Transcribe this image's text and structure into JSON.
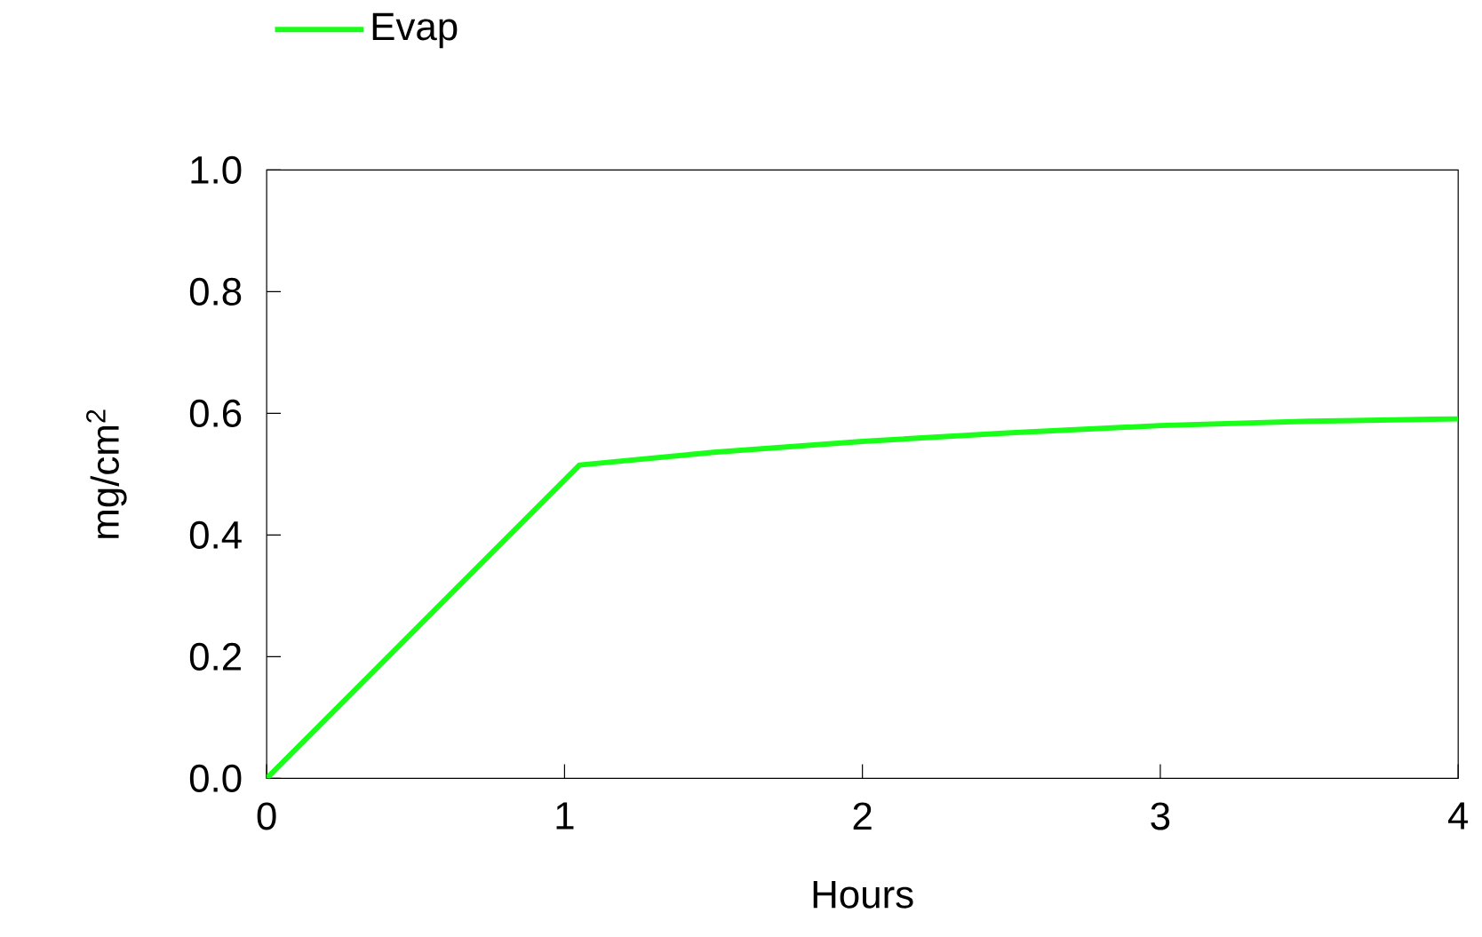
{
  "chart_data": {
    "type": "line",
    "xlabel": "Hours",
    "ylabel": "mg/cm$^{2}$",
    "x": [
      0,
      1.05,
      1.5,
      2,
      2.5,
      3,
      3.5,
      4
    ],
    "series": [
      {
        "name": "Evap",
        "color": "#19ff19",
        "values": [
          0,
          0.515,
          0.536,
          0.554,
          0.568,
          0.58,
          0.587,
          0.591
        ]
      }
    ],
    "xlim": [
      0,
      4
    ],
    "ylim": [
      0,
      1.0
    ],
    "xticks": [
      0,
      1,
      2,
      3,
      4
    ],
    "yticks": [
      {
        "value": 0,
        "label": "0.0"
      },
      0.2,
      0.4,
      0.6,
      0.8,
      {
        "value": 1,
        "label": "1.0"
      }
    ],
    "grid": false,
    "legend": "top left",
    "marker": "none",
    "line_style": "solid"
  }
}
